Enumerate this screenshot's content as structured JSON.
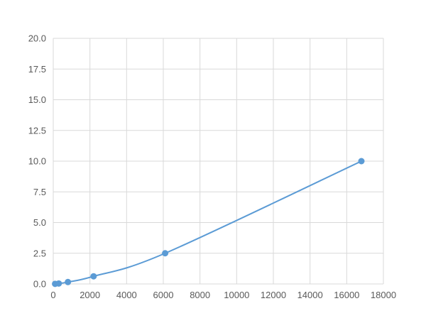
{
  "chart_data": {
    "type": "scatter",
    "title": "",
    "xlabel": "",
    "ylabel": "",
    "xlim": [
      0,
      18000
    ],
    "ylim": [
      0,
      20
    ],
    "xticks": [
      0,
      2000,
      4000,
      6000,
      8000,
      10000,
      12000,
      14000,
      16000,
      18000
    ],
    "yticks": [
      "0.0",
      "2.5",
      "5.0",
      "7.5",
      "10.0",
      "12.5",
      "15.0",
      "17.5",
      "20.0"
    ],
    "grid": true,
    "legend": "none",
    "series": [
      {
        "x": [
          100,
          300,
          800,
          2200,
          6100,
          16800
        ],
        "y": [
          0.0098,
          0.039,
          0.156,
          0.625,
          2.5,
          10
        ],
        "color": "#5b9bd5",
        "smooth_line": true,
        "markers": true
      }
    ]
  }
}
